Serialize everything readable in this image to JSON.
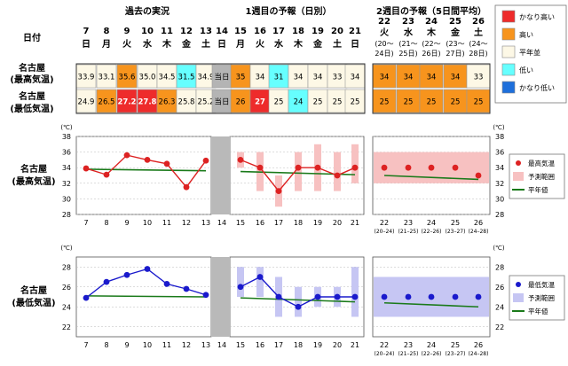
{
  "headings": {
    "past": "過去の実況",
    "week1": "1週目の予報（日別）",
    "week2": "2週目の予報（5日間平均）",
    "date_label": "日付",
    "row_max": [
      "名古屋",
      "(最高気温)"
    ],
    "row_min": [
      "名古屋",
      "(最低気温)"
    ],
    "chart_max_label": [
      "名古屋",
      "(最高気温)"
    ],
    "chart_min_label": [
      "名古屋",
      "(最低気温)"
    ]
  },
  "days": [
    {
      "d": "7",
      "w": "日"
    },
    {
      "d": "8",
      "w": "月"
    },
    {
      "d": "9",
      "w": "火"
    },
    {
      "d": "10",
      "w": "水"
    },
    {
      "d": "11",
      "w": "木"
    },
    {
      "d": "12",
      "w": "金"
    },
    {
      "d": "13",
      "w": "土"
    },
    {
      "d": "14",
      "w": "日"
    },
    {
      "d": "15",
      "w": "月"
    },
    {
      "d": "16",
      "w": "火"
    },
    {
      "d": "17",
      "w": "水"
    },
    {
      "d": "18",
      "w": "木"
    },
    {
      "d": "19",
      "w": "金"
    },
    {
      "d": "20",
      "w": "土"
    },
    {
      "d": "21",
      "w": "日"
    }
  ],
  "periods": [
    {
      "d": "22",
      "w": "火",
      "r1": "(20～",
      "r2": "24日)",
      "axis": "(20–24)"
    },
    {
      "d": "23",
      "w": "水",
      "r1": "(21～",
      "r2": "25日)",
      "axis": "(21–25)"
    },
    {
      "d": "24",
      "w": "木",
      "r1": "(22～",
      "r2": "26日)",
      "axis": "(22–26)"
    },
    {
      "d": "25",
      "w": "金",
      "r1": "(23～",
      "r2": "27日)",
      "axis": "(23–27)"
    },
    {
      "d": "26",
      "w": "土",
      "r1": "(24～",
      "r2": "28日)",
      "axis": "(24–28)"
    }
  ],
  "table": {
    "max": [
      {
        "t": "33.9",
        "c": "n"
      },
      {
        "t": "33.1",
        "c": "n"
      },
      {
        "t": "35.6",
        "c": "h"
      },
      {
        "t": "35.0",
        "c": "n"
      },
      {
        "t": "34.5",
        "c": "n"
      },
      {
        "t": "31.5",
        "c": "l"
      },
      {
        "t": "34.9",
        "c": "n"
      },
      {
        "t": "当日",
        "c": "x"
      },
      {
        "t": "35",
        "c": "h"
      },
      {
        "t": "34",
        "c": "n"
      },
      {
        "t": "31",
        "c": "l"
      },
      {
        "t": "34",
        "c": "n"
      },
      {
        "t": "34",
        "c": "n"
      },
      {
        "t": "33",
        "c": "n"
      },
      {
        "t": "34",
        "c": "n"
      }
    ],
    "min": [
      {
        "t": "24.9",
        "c": "n"
      },
      {
        "t": "26.5",
        "c": "h"
      },
      {
        "t": "27.2",
        "c": "vh"
      },
      {
        "t": "27.8",
        "c": "vh"
      },
      {
        "t": "26.3",
        "c": "h"
      },
      {
        "t": "25.8",
        "c": "n"
      },
      {
        "t": "25.2",
        "c": "n"
      },
      {
        "t": "当日",
        "c": "x"
      },
      {
        "t": "26",
        "c": "h"
      },
      {
        "t": "27",
        "c": "vh"
      },
      {
        "t": "25",
        "c": "n"
      },
      {
        "t": "24",
        "c": "l"
      },
      {
        "t": "25",
        "c": "n"
      },
      {
        "t": "25",
        "c": "n"
      },
      {
        "t": "25",
        "c": "n"
      }
    ],
    "max_w2": [
      {
        "t": "34",
        "c": "h"
      },
      {
        "t": "34",
        "c": "h"
      },
      {
        "t": "34",
        "c": "h"
      },
      {
        "t": "34",
        "c": "h"
      },
      {
        "t": "33",
        "c": "n"
      }
    ],
    "min_w2": [
      {
        "t": "25",
        "c": "h"
      },
      {
        "t": "25",
        "c": "h"
      },
      {
        "t": "25",
        "c": "h"
      },
      {
        "t": "25",
        "c": "h"
      },
      {
        "t": "25",
        "c": "h"
      }
    ]
  },
  "class_legend": [
    {
      "label": "かなり高い",
      "color": "#ee2b2b"
    },
    {
      "label": "高い",
      "color": "#f7941d"
    },
    {
      "label": "平年並",
      "color": "#fdf8e6"
    },
    {
      "label": "低い",
      "color": "#66ffff"
    },
    {
      "label": "かなり低い",
      "color": "#1e6fdb"
    }
  ],
  "class_colors": {
    "vh": "#ee2b2b",
    "h": "#f7941d",
    "n": "#fdf8e6",
    "l": "#66ffff",
    "vl": "#1e6fdb",
    "x": "#b4b4b4"
  },
  "chart_data": [
    {
      "type": "line",
      "unit": "(℃)",
      "ylim": [
        28,
        38
      ],
      "yticks": [
        28,
        30,
        32,
        34,
        36,
        38
      ],
      "x": [
        "7",
        "8",
        "9",
        "10",
        "11",
        "12",
        "13",
        "14",
        "15",
        "16",
        "17",
        "18",
        "19",
        "20",
        "21",
        "22",
        "23",
        "24",
        "25",
        "26"
      ],
      "series": [
        {
          "name": "最高気温",
          "past": [
            33.9,
            33.1,
            35.6,
            35.0,
            34.5,
            31.5,
            34.9
          ],
          "week1": [
            35,
            34,
            31,
            34,
            34,
            33,
            34
          ],
          "week2": [
            34,
            34,
            34,
            34,
            33
          ]
        }
      ],
      "normal": {
        "name": "平年値",
        "past": [
          33.8,
          33.6
        ],
        "week1": [
          33.5,
          33.1
        ],
        "week2": [
          33.0,
          32.5
        ]
      },
      "range": {
        "name": "予測範囲",
        "week1": [
          [
            34,
            36
          ],
          [
            31,
            36
          ],
          [
            29,
            33
          ],
          [
            31,
            36
          ],
          [
            31,
            37
          ],
          [
            31,
            36
          ],
          [
            32,
            37
          ]
        ],
        "week2": [
          [
            32,
            36
          ],
          [
            32,
            36
          ],
          [
            32,
            36
          ],
          [
            32,
            36
          ],
          [
            32,
            36
          ]
        ]
      }
    },
    {
      "type": "line",
      "unit": "(℃)",
      "ylim": [
        21,
        29
      ],
      "yticks": [
        22,
        24,
        26,
        28
      ],
      "x": [
        "7",
        "8",
        "9",
        "10",
        "11",
        "12",
        "13",
        "14",
        "15",
        "16",
        "17",
        "18",
        "19",
        "20",
        "21",
        "22",
        "23",
        "24",
        "25",
        "26"
      ],
      "series": [
        {
          "name": "最低気温",
          "past": [
            24.9,
            26.5,
            27.2,
            27.8,
            26.3,
            25.8,
            25.2
          ],
          "week1": [
            26,
            27,
            25,
            24,
            25,
            25,
            25
          ],
          "week2": [
            25,
            25,
            25,
            25,
            25
          ]
        }
      ],
      "normal": {
        "name": "平年値",
        "past": [
          25.1,
          25.0
        ],
        "week1": [
          24.9,
          24.5
        ],
        "week2": [
          24.4,
          24.0
        ]
      },
      "range": {
        "name": "予測範囲",
        "week1": [
          [
            25,
            28
          ],
          [
            25,
            28
          ],
          [
            23,
            27
          ],
          [
            23,
            26
          ],
          [
            24,
            26
          ],
          [
            24,
            26
          ],
          [
            23,
            28
          ]
        ],
        "week2": [
          [
            23,
            27
          ],
          [
            23,
            27
          ],
          [
            23,
            27
          ],
          [
            23,
            27
          ],
          [
            23,
            27
          ]
        ]
      }
    }
  ],
  "chart_legend_max": [
    {
      "label": "最高気温",
      "kind": "dot",
      "color": "#dd2222"
    },
    {
      "label": "予測範囲",
      "kind": "box",
      "color": "#f7c1c1"
    },
    {
      "label": "平年値",
      "kind": "line",
      "color": "#1a7a1a"
    }
  ],
  "chart_legend_min": [
    {
      "label": "最低気温",
      "kind": "dot",
      "color": "#1a1acc"
    },
    {
      "label": "予測範囲",
      "kind": "box",
      "color": "#c6c6f3"
    },
    {
      "label": "平年値",
      "kind": "line",
      "color": "#1a7a1a"
    }
  ]
}
